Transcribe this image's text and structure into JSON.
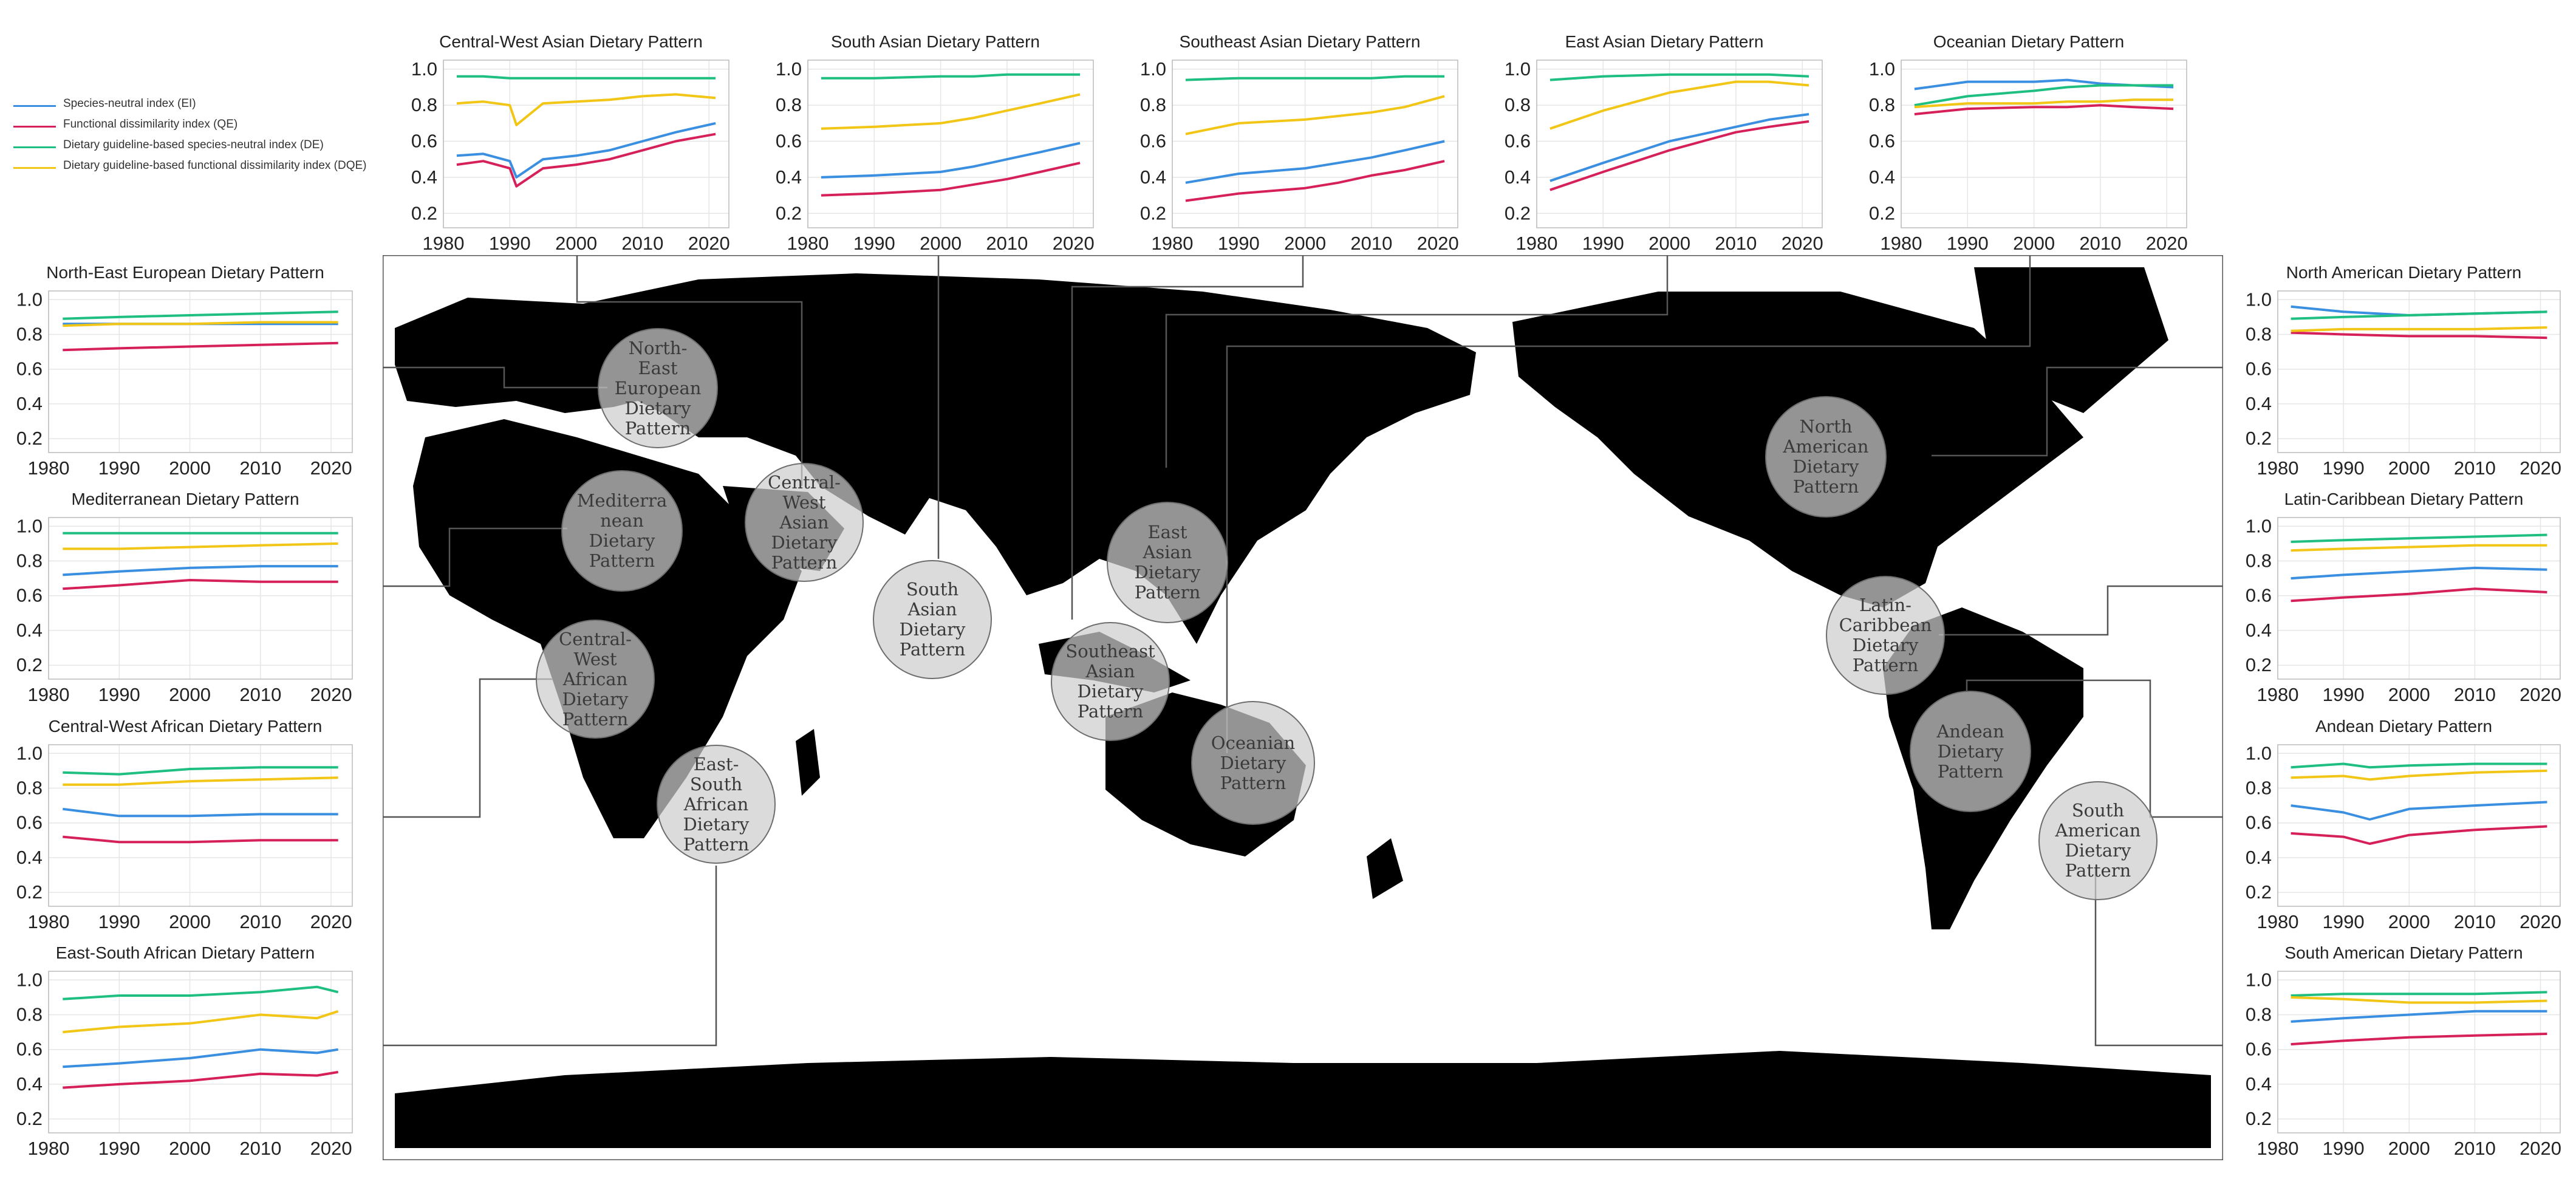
{
  "legend": [
    {
      "label": "Species-neutral index (EI)",
      "color": "#3b8fe0"
    },
    {
      "label": "Functional dissimilarity index (QE)",
      "color": "#d6205a"
    },
    {
      "label": "Dietary guideline-based species-neutral index (DE)",
      "color": "#1fbf82"
    },
    {
      "label": "Dietary guideline-based functional dissimilarity index (DQE)",
      "color": "#f2c617"
    }
  ],
  "map": {
    "land_color": "#f9dfc3",
    "ocean_color": "#ffffff",
    "regions": [
      {
        "label": "North-\nEast\nEuropean\nDietary\nPattern"
      },
      {
        "label": "Mediterra\nnean\nDietary\nPattern"
      },
      {
        "label": "Central-\nWest\nAfrican\nDietary\nPattern"
      },
      {
        "label": "East-\nSouth\nAfrican\nDietary\nPattern"
      },
      {
        "label": "Central-\nWest\nAsian\nDietary\nPattern"
      },
      {
        "label": "South\nAsian\nDietary\nPattern"
      },
      {
        "label": "East\nAsian\nDietary\nPattern"
      },
      {
        "label": "Southeast\nAsian\nDietary\nPattern"
      },
      {
        "label": "Oceanian\nDietary\nPattern"
      },
      {
        "label": "North\nAmerican\nDietary\nPattern"
      },
      {
        "label": "Latin-\nCaribbean\nDietary\nPattern"
      },
      {
        "label": "Andean\nDietary\nPattern"
      },
      {
        "label": "South\nAmerican\nDietary\nPattern"
      }
    ]
  },
  "chart_data": [
    {
      "type": "line",
      "title": "Central-West Asian Dietary Pattern",
      "x": [
        1982,
        1986,
        1990,
        1991,
        1995,
        2000,
        2005,
        2010,
        2015,
        2021
      ],
      "xticks": [
        1980,
        1990,
        2000,
        2010,
        2020
      ],
      "yticks": [
        0.2,
        0.4,
        0.6,
        0.8,
        1.0
      ],
      "ylim": [
        0.12,
        1.05
      ],
      "series": [
        {
          "name": "EI",
          "values": [
            0.52,
            0.53,
            0.49,
            0.4,
            0.5,
            0.52,
            0.55,
            0.6,
            0.65,
            0.7
          ]
        },
        {
          "name": "QE",
          "values": [
            0.47,
            0.49,
            0.45,
            0.35,
            0.45,
            0.47,
            0.5,
            0.55,
            0.6,
            0.64
          ]
        },
        {
          "name": "DE",
          "values": [
            0.96,
            0.96,
            0.95,
            0.95,
            0.95,
            0.95,
            0.95,
            0.95,
            0.95,
            0.95
          ]
        },
        {
          "name": "DQE",
          "values": [
            0.81,
            0.82,
            0.8,
            0.69,
            0.81,
            0.82,
            0.83,
            0.85,
            0.86,
            0.84
          ]
        }
      ]
    },
    {
      "type": "line",
      "title": "South Asian Dietary Pattern",
      "x": [
        1982,
        1990,
        2000,
        2005,
        2010,
        2015,
        2021
      ],
      "xticks": [
        1980,
        1990,
        2000,
        2010,
        2020
      ],
      "yticks": [
        0.2,
        0.4,
        0.6,
        0.8,
        1.0
      ],
      "ylim": [
        0.12,
        1.05
      ],
      "series": [
        {
          "name": "EI",
          "values": [
            0.4,
            0.41,
            0.43,
            0.46,
            0.5,
            0.54,
            0.59
          ]
        },
        {
          "name": "QE",
          "values": [
            0.3,
            0.31,
            0.33,
            0.36,
            0.39,
            0.43,
            0.48
          ]
        },
        {
          "name": "DE",
          "values": [
            0.95,
            0.95,
            0.96,
            0.96,
            0.97,
            0.97,
            0.97
          ]
        },
        {
          "name": "DQE",
          "values": [
            0.67,
            0.68,
            0.7,
            0.73,
            0.77,
            0.81,
            0.86
          ]
        }
      ]
    },
    {
      "type": "line",
      "title": "Southeast Asian Dietary Pattern",
      "x": [
        1982,
        1990,
        2000,
        2005,
        2010,
        2015,
        2021
      ],
      "xticks": [
        1980,
        1990,
        2000,
        2010,
        2020
      ],
      "yticks": [
        0.2,
        0.4,
        0.6,
        0.8,
        1.0
      ],
      "ylim": [
        0.12,
        1.05
      ],
      "series": [
        {
          "name": "EI",
          "values": [
            0.37,
            0.42,
            0.45,
            0.48,
            0.51,
            0.55,
            0.6
          ]
        },
        {
          "name": "QE",
          "values": [
            0.27,
            0.31,
            0.34,
            0.37,
            0.41,
            0.44,
            0.49
          ]
        },
        {
          "name": "DE",
          "values": [
            0.94,
            0.95,
            0.95,
            0.95,
            0.95,
            0.96,
            0.96
          ]
        },
        {
          "name": "DQE",
          "values": [
            0.64,
            0.7,
            0.72,
            0.74,
            0.76,
            0.79,
            0.85
          ]
        }
      ]
    },
    {
      "type": "line",
      "title": "East Asian Dietary Pattern",
      "x": [
        1982,
        1990,
        2000,
        2005,
        2010,
        2015,
        2021
      ],
      "xticks": [
        1980,
        1990,
        2000,
        2010,
        2020
      ],
      "yticks": [
        0.2,
        0.4,
        0.6,
        0.8,
        1.0
      ],
      "ylim": [
        0.12,
        1.05
      ],
      "series": [
        {
          "name": "EI",
          "values": [
            0.38,
            0.48,
            0.6,
            0.64,
            0.68,
            0.72,
            0.75
          ]
        },
        {
          "name": "QE",
          "values": [
            0.33,
            0.43,
            0.55,
            0.6,
            0.65,
            0.68,
            0.71
          ]
        },
        {
          "name": "DE",
          "values": [
            0.94,
            0.96,
            0.97,
            0.97,
            0.97,
            0.97,
            0.96
          ]
        },
        {
          "name": "DQE",
          "values": [
            0.67,
            0.77,
            0.87,
            0.9,
            0.93,
            0.93,
            0.91
          ]
        }
      ]
    },
    {
      "type": "line",
      "title": "Oceanian Dietary Pattern",
      "x": [
        1982,
        1990,
        2000,
        2005,
        2010,
        2015,
        2021
      ],
      "xticks": [
        1980,
        1990,
        2000,
        2010,
        2020
      ],
      "yticks": [
        0.2,
        0.4,
        0.6,
        0.8,
        1.0
      ],
      "ylim": [
        0.12,
        1.05
      ],
      "series": [
        {
          "name": "EI",
          "values": [
            0.89,
            0.93,
            0.93,
            0.94,
            0.92,
            0.91,
            0.9
          ]
        },
        {
          "name": "QE",
          "values": [
            0.75,
            0.78,
            0.79,
            0.79,
            0.8,
            0.79,
            0.78
          ]
        },
        {
          "name": "DE",
          "values": [
            0.8,
            0.85,
            0.88,
            0.9,
            0.91,
            0.91,
            0.91
          ]
        },
        {
          "name": "DQE",
          "values": [
            0.79,
            0.81,
            0.81,
            0.82,
            0.82,
            0.83,
            0.83
          ]
        }
      ]
    },
    {
      "type": "line",
      "title": "North-East European Dietary Pattern",
      "x": [
        1982,
        1990,
        2000,
        2010,
        2021
      ],
      "xticks": [
        1980,
        1990,
        2000,
        2010,
        2020
      ],
      "yticks": [
        0.2,
        0.4,
        0.6,
        0.8,
        1.0
      ],
      "ylim": [
        0.12,
        1.05
      ],
      "series": [
        {
          "name": "EI",
          "values": [
            0.86,
            0.86,
            0.86,
            0.86,
            0.86
          ]
        },
        {
          "name": "QE",
          "values": [
            0.71,
            0.72,
            0.73,
            0.74,
            0.75
          ]
        },
        {
          "name": "DE",
          "values": [
            0.89,
            0.9,
            0.91,
            0.92,
            0.93
          ]
        },
        {
          "name": "DQE",
          "values": [
            0.85,
            0.86,
            0.86,
            0.87,
            0.87
          ]
        }
      ]
    },
    {
      "type": "line",
      "title": "Mediterranean Dietary Pattern",
      "x": [
        1982,
        1990,
        2000,
        2010,
        2021
      ],
      "xticks": [
        1980,
        1990,
        2000,
        2010,
        2020
      ],
      "yticks": [
        0.2,
        0.4,
        0.6,
        0.8,
        1.0
      ],
      "ylim": [
        0.12,
        1.05
      ],
      "series": [
        {
          "name": "EI",
          "values": [
            0.72,
            0.74,
            0.76,
            0.77,
            0.77
          ]
        },
        {
          "name": "QE",
          "values": [
            0.64,
            0.66,
            0.69,
            0.68,
            0.68
          ]
        },
        {
          "name": "DE",
          "values": [
            0.96,
            0.96,
            0.96,
            0.96,
            0.96
          ]
        },
        {
          "name": "DQE",
          "values": [
            0.87,
            0.87,
            0.88,
            0.89,
            0.9
          ]
        }
      ]
    },
    {
      "type": "line",
      "title": "Central-West African Dietary Pattern",
      "x": [
        1982,
        1990,
        2000,
        2010,
        2021
      ],
      "xticks": [
        1980,
        1990,
        2000,
        2010,
        2020
      ],
      "yticks": [
        0.2,
        0.4,
        0.6,
        0.8,
        1.0
      ],
      "ylim": [
        0.12,
        1.05
      ],
      "series": [
        {
          "name": "EI",
          "values": [
            0.68,
            0.64,
            0.64,
            0.65,
            0.65
          ]
        },
        {
          "name": "QE",
          "values": [
            0.52,
            0.49,
            0.49,
            0.5,
            0.5
          ]
        },
        {
          "name": "DE",
          "values": [
            0.89,
            0.88,
            0.91,
            0.92,
            0.92
          ]
        },
        {
          "name": "DQE",
          "values": [
            0.82,
            0.82,
            0.84,
            0.85,
            0.86
          ]
        }
      ]
    },
    {
      "type": "line",
      "title": "East-South African Dietary Pattern",
      "x": [
        1982,
        1990,
        2000,
        2010,
        2018,
        2021
      ],
      "xticks": [
        1980,
        1990,
        2000,
        2010,
        2020
      ],
      "yticks": [
        0.2,
        0.4,
        0.6,
        0.8,
        1.0
      ],
      "ylim": [
        0.12,
        1.05
      ],
      "series": [
        {
          "name": "EI",
          "values": [
            0.5,
            0.52,
            0.55,
            0.6,
            0.58,
            0.6
          ]
        },
        {
          "name": "QE",
          "values": [
            0.38,
            0.4,
            0.42,
            0.46,
            0.45,
            0.47
          ]
        },
        {
          "name": "DE",
          "values": [
            0.89,
            0.91,
            0.91,
            0.93,
            0.96,
            0.93
          ]
        },
        {
          "name": "DQE",
          "values": [
            0.7,
            0.73,
            0.75,
            0.8,
            0.78,
            0.82
          ]
        }
      ]
    },
    {
      "type": "line",
      "title": "North American Dietary Pattern",
      "x": [
        1982,
        1990,
        2000,
        2010,
        2021
      ],
      "xticks": [
        1980,
        1990,
        2000,
        2010,
        2020
      ],
      "yticks": [
        0.2,
        0.4,
        0.6,
        0.8,
        1.0
      ],
      "ylim": [
        0.12,
        1.05
      ],
      "series": [
        {
          "name": "EI",
          "values": [
            0.96,
            0.93,
            0.91,
            0.92,
            0.93
          ]
        },
        {
          "name": "QE",
          "values": [
            0.81,
            0.8,
            0.79,
            0.79,
            0.78
          ]
        },
        {
          "name": "DE",
          "values": [
            0.89,
            0.9,
            0.91,
            0.92,
            0.93
          ]
        },
        {
          "name": "DQE",
          "values": [
            0.82,
            0.83,
            0.83,
            0.83,
            0.84
          ]
        }
      ]
    },
    {
      "type": "line",
      "title": "Latin-Caribbean Dietary Pattern",
      "x": [
        1982,
        1990,
        2000,
        2010,
        2021
      ],
      "xticks": [
        1980,
        1990,
        2000,
        2010,
        2020
      ],
      "yticks": [
        0.2,
        0.4,
        0.6,
        0.8,
        1.0
      ],
      "ylim": [
        0.12,
        1.05
      ],
      "series": [
        {
          "name": "EI",
          "values": [
            0.7,
            0.72,
            0.74,
            0.76,
            0.75
          ]
        },
        {
          "name": "QE",
          "values": [
            0.57,
            0.59,
            0.61,
            0.64,
            0.62
          ]
        },
        {
          "name": "DE",
          "values": [
            0.91,
            0.92,
            0.93,
            0.94,
            0.95
          ]
        },
        {
          "name": "DQE",
          "values": [
            0.86,
            0.87,
            0.88,
            0.89,
            0.89
          ]
        }
      ]
    },
    {
      "type": "line",
      "title": "Andean Dietary Pattern",
      "x": [
        1982,
        1990,
        1994,
        2000,
        2010,
        2021
      ],
      "xticks": [
        1980,
        1990,
        2000,
        2010,
        2020
      ],
      "yticks": [
        0.2,
        0.4,
        0.6,
        0.8,
        1.0
      ],
      "ylim": [
        0.12,
        1.05
      ],
      "series": [
        {
          "name": "EI",
          "values": [
            0.7,
            0.66,
            0.62,
            0.68,
            0.7,
            0.72
          ]
        },
        {
          "name": "QE",
          "values": [
            0.54,
            0.52,
            0.48,
            0.53,
            0.56,
            0.58
          ]
        },
        {
          "name": "DE",
          "values": [
            0.92,
            0.94,
            0.92,
            0.93,
            0.94,
            0.94
          ]
        },
        {
          "name": "DQE",
          "values": [
            0.86,
            0.87,
            0.85,
            0.87,
            0.89,
            0.9
          ]
        }
      ]
    },
    {
      "type": "line",
      "title": "South American Dietary Pattern",
      "x": [
        1982,
        1990,
        2000,
        2010,
        2021
      ],
      "xticks": [
        1980,
        1990,
        2000,
        2010,
        2020
      ],
      "yticks": [
        0.2,
        0.4,
        0.6,
        0.8,
        1.0
      ],
      "ylim": [
        0.12,
        1.05
      ],
      "series": [
        {
          "name": "EI",
          "values": [
            0.76,
            0.78,
            0.8,
            0.82,
            0.82
          ]
        },
        {
          "name": "QE",
          "values": [
            0.63,
            0.65,
            0.67,
            0.68,
            0.69
          ]
        },
        {
          "name": "DE",
          "values": [
            0.91,
            0.92,
            0.92,
            0.92,
            0.93
          ]
        },
        {
          "name": "DQE",
          "values": [
            0.9,
            0.89,
            0.87,
            0.87,
            0.88
          ]
        }
      ]
    }
  ]
}
